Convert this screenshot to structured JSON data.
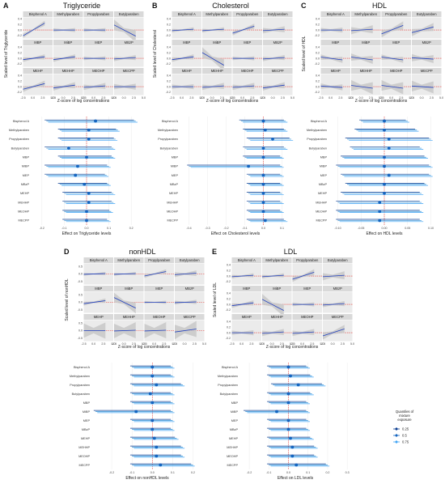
{
  "figure": {
    "legend": {
      "title_lines": [
        "Quantiles of",
        "mixture",
        "exposure"
      ],
      "items": [
        {
          "label": "0.25",
          "color": "#0b3d91"
        },
        {
          "label": "0.5",
          "color": "#1565c0"
        },
        {
          "label": "0.75",
          "color": "#42a5f5"
        }
      ]
    },
    "colors": {
      "fit_line": "#1f3fbf",
      "ref_line": "#e53935",
      "band": "#c8c8c8",
      "strip": "#d9d9d9",
      "panel_bg": "#ebebeb",
      "forest_line": "#2b8fd6",
      "forest_point": "#1565c0"
    }
  },
  "chart_data": [
    {
      "id": "A",
      "outcome": "Triglyceride",
      "type": "line",
      "ylabel": "Scaled level of Triglyceride",
      "xlabel": "Z-score of log concentrations",
      "yticks": [
        "0.4",
        "0.2",
        "0.0",
        "-0.2"
      ],
      "xticks": [
        "-2.5",
        "0.0",
        "2.5",
        "5.0"
      ],
      "ylim": [
        -0.3,
        0.45
      ],
      "xlim": [
        -2.5,
        5.0
      ],
      "facets": [
        {
          "name": "Bisphenol A",
          "slope": 0.45,
          "band": 0.05
        },
        {
          "name": "Methylparaben",
          "slope": 0.0,
          "band": 0.04
        },
        {
          "name": "Propylparaben",
          "slope": 0.0,
          "band": 0.04
        },
        {
          "name": "Butylparaben",
          "slope": -0.4,
          "band": 0.12
        },
        {
          "name": "MBP",
          "slope": 0.1,
          "band": 0.05
        },
        {
          "name": "MiBP",
          "slope": 0.1,
          "band": 0.05
        },
        {
          "name": "MEP",
          "slope": 0.0,
          "band": 0.04
        },
        {
          "name": "MBzP",
          "slope": 0.05,
          "band": 0.05
        },
        {
          "name": "MEHP",
          "slope": 0.2,
          "band": 0.06
        },
        {
          "name": "MEHHP",
          "slope": 0.1,
          "band": 0.06
        },
        {
          "name": "MEOHP",
          "slope": 0.05,
          "band": 0.06
        },
        {
          "name": "MECPP",
          "slope": 0.0,
          "band": 0.06
        }
      ],
      "forest": {
        "xlabel": "Effect on Triglyceride levels",
        "xticks": [
          "-0.2",
          "-0.1",
          "0.0",
          "0.1",
          "0.2"
        ],
        "xlim": [
          -0.25,
          0.25
        ],
        "rows": [
          {
            "name": "Bisphenol A",
            "est": 0.04,
            "lo": -0.18,
            "hi": 0.22
          },
          {
            "name": "Methylparaben",
            "est": 0.01,
            "lo": -0.12,
            "hi": 0.14
          },
          {
            "name": "Propylparaben",
            "est": 0.01,
            "lo": -0.12,
            "hi": 0.13
          },
          {
            "name": "Butylparaben",
            "est": -0.08,
            "lo": -0.18,
            "hi": 0.12
          },
          {
            "name": "MBP",
            "est": 0.0,
            "lo": -0.12,
            "hi": 0.12
          },
          {
            "name": "MiBP",
            "est": -0.04,
            "lo": -0.18,
            "hi": 0.1
          },
          {
            "name": "MEP",
            "est": -0.05,
            "lo": -0.18,
            "hi": 0.09
          },
          {
            "name": "MBzP",
            "est": -0.01,
            "lo": -0.12,
            "hi": 0.1
          },
          {
            "name": "MEHP",
            "est": 0.01,
            "lo": -0.1,
            "hi": 0.12
          },
          {
            "name": "MEHHP",
            "est": 0.01,
            "lo": -0.1,
            "hi": 0.12
          },
          {
            "name": "MEOHP",
            "est": 0.0,
            "lo": -0.1,
            "hi": 0.11
          },
          {
            "name": "MECPP",
            "est": 0.0,
            "lo": -0.1,
            "hi": 0.1
          }
        ]
      }
    },
    {
      "id": "B",
      "outcome": "Cholesterol",
      "type": "line",
      "ylabel": "Scaled level of Cholesterol",
      "xlabel": "Z-score of log concentrations",
      "yticks": [
        "0.4",
        "0.2",
        "0.0",
        "-0.2"
      ],
      "xticks": [
        "-2.5",
        "0.0",
        "2.5",
        "5.0"
      ],
      "ylim": [
        -0.3,
        0.45
      ],
      "xlim": [
        -2.5,
        5.0
      ],
      "facets": [
        {
          "name": "Bisphenol A",
          "slope": 0.05,
          "band": 0.04
        },
        {
          "name": "Methylparaben",
          "slope": 0.05,
          "band": 0.04
        },
        {
          "name": "Propylparaben",
          "slope": 0.25,
          "band": 0.05
        },
        {
          "name": "Butylparaben",
          "slope": 0.05,
          "band": 0.06
        },
        {
          "name": "MBP",
          "slope": 0.1,
          "band": 0.05
        },
        {
          "name": "MiBP",
          "slope": -0.45,
          "band": 0.12
        },
        {
          "name": "MEP",
          "slope": 0.0,
          "band": 0.04
        },
        {
          "name": "MBzP",
          "slope": 0.05,
          "band": 0.05
        },
        {
          "name": "MEHP",
          "slope": 0.0,
          "band": 0.05
        },
        {
          "name": "MEHHP",
          "slope": 0.05,
          "band": 0.06
        },
        {
          "name": "MEOHP",
          "slope": 0.05,
          "band": 0.06
        },
        {
          "name": "MECPP",
          "slope": 0.1,
          "band": 0.06
        }
      ],
      "forest": {
        "xlabel": "Effect on Cholesterol levels",
        "xticks": [
          "-0.4",
          "-0.3",
          "-0.2",
          "-0.1",
          "0.0",
          "0.1"
        ],
        "xlim": [
          -0.45,
          0.15
        ],
        "rows": [
          {
            "name": "Bisphenol A",
            "est": 0.0,
            "lo": -0.12,
            "hi": 0.12
          },
          {
            "name": "Methylparaben",
            "est": 0.01,
            "lo": -0.1,
            "hi": 0.12
          },
          {
            "name": "Propylparaben",
            "est": 0.05,
            "lo": -0.08,
            "hi": 0.15
          },
          {
            "name": "Butylparaben",
            "est": 0.0,
            "lo": -0.1,
            "hi": 0.12
          },
          {
            "name": "MBP",
            "est": 0.0,
            "lo": -0.1,
            "hi": 0.1
          },
          {
            "name": "MiBP",
            "est": -0.08,
            "lo": -0.4,
            "hi": 0.1
          },
          {
            "name": "MEP",
            "est": 0.0,
            "lo": -0.08,
            "hi": 0.1
          },
          {
            "name": "MBzP",
            "est": 0.0,
            "lo": -0.08,
            "hi": 0.1
          },
          {
            "name": "MEHP",
            "est": 0.0,
            "lo": -0.08,
            "hi": 0.1
          },
          {
            "name": "MEHHP",
            "est": 0.0,
            "lo": -0.08,
            "hi": 0.1
          },
          {
            "name": "MEOHP",
            "est": 0.0,
            "lo": -0.08,
            "hi": 0.1
          },
          {
            "name": "MECPP",
            "est": 0.01,
            "lo": -0.08,
            "hi": 0.12
          }
        ]
      }
    },
    {
      "id": "C",
      "outcome": "HDL",
      "type": "line",
      "ylabel": "Scaled level of HDL",
      "xlabel": "Z-score of log concentrations",
      "yticks": [
        "0.4",
        "0.2",
        "0.0",
        "-0.2"
      ],
      "xticks": [
        "-2.5",
        "0.0",
        "2.5",
        "5.0"
      ],
      "ylim": [
        -0.3,
        0.45
      ],
      "xlim": [
        -2.5,
        5.0
      ],
      "facets": [
        {
          "name": "Bisphenol A",
          "slope": 0.0,
          "band": 0.05
        },
        {
          "name": "Methylparaben",
          "slope": 0.05,
          "band": 0.08
        },
        {
          "name": "Propylparaben",
          "slope": 0.3,
          "band": 0.08
        },
        {
          "name": "Butylparaben",
          "slope": 0.2,
          "band": 0.08
        },
        {
          "name": "MBP",
          "slope": -0.1,
          "band": 0.06
        },
        {
          "name": "MiBP",
          "slope": -0.1,
          "band": 0.08
        },
        {
          "name": "MEP",
          "slope": -0.1,
          "band": 0.06
        },
        {
          "name": "MBzP",
          "slope": -0.05,
          "band": 0.08
        },
        {
          "name": "MEHP",
          "slope": -0.05,
          "band": 0.06
        },
        {
          "name": "MEHHP",
          "slope": -0.1,
          "band": 0.12
        },
        {
          "name": "MEOHP",
          "slope": -0.1,
          "band": 0.12
        },
        {
          "name": "MECPP",
          "slope": -0.05,
          "band": 0.12
        }
      ],
      "forest": {
        "xlabel": "Effect on HDL levels",
        "xticks": [
          "-0.10",
          "-0.05",
          "0.00",
          "0.05",
          "0.10"
        ],
        "xlim": [
          -0.12,
          0.12
        ],
        "rows": [
          {
            "name": "Bisphenol A",
            "est": 0.0,
            "lo": -0.05,
            "hi": 0.05
          },
          {
            "name": "Methylparaben",
            "est": 0.0,
            "lo": -0.06,
            "hi": 0.07
          },
          {
            "name": "Propylparaben",
            "est": 0.01,
            "lo": -0.08,
            "hi": 0.1
          },
          {
            "name": "Butylparaben",
            "est": 0.01,
            "lo": -0.07,
            "hi": 0.08
          },
          {
            "name": "MBP",
            "est": 0.0,
            "lo": -0.09,
            "hi": 0.09
          },
          {
            "name": "MiBP",
            "est": 0.0,
            "lo": -0.1,
            "hi": 0.1
          },
          {
            "name": "MEP",
            "est": 0.01,
            "lo": -0.09,
            "hi": 0.1
          },
          {
            "name": "MBzP",
            "est": 0.0,
            "lo": -0.08,
            "hi": 0.09
          },
          {
            "name": "MEHP",
            "est": 0.0,
            "lo": -0.09,
            "hi": 0.08
          },
          {
            "name": "MEHHP",
            "est": -0.01,
            "lo": -0.1,
            "hi": 0.08
          },
          {
            "name": "MEOHP",
            "est": -0.01,
            "lo": -0.1,
            "hi": 0.08
          },
          {
            "name": "MECPP",
            "est": -0.01,
            "lo": -0.1,
            "hi": 0.08
          }
        ]
      }
    },
    {
      "id": "D",
      "outcome": "nonHDL",
      "type": "line",
      "ylabel": "Scaled level of nonHDL",
      "xlabel": "Z-score of log concentrations",
      "yticks": [
        "0.5",
        "0.0",
        "-0.5"
      ],
      "xticks": [
        "-2.5",
        "0.0",
        "2.5",
        "5.0"
      ],
      "ylim": [
        -0.7,
        0.7
      ],
      "xlim": [
        -2.5,
        5.0
      ],
      "facets": [
        {
          "name": "Bisphenol A",
          "slope": 0.05,
          "band": 0.06
        },
        {
          "name": "Methylparaben",
          "slope": 0.05,
          "band": 0.06
        },
        {
          "name": "Propylparaben",
          "slope": 0.3,
          "band": 0.08
        },
        {
          "name": "Butylparaben",
          "slope": 0.1,
          "band": 0.1
        },
        {
          "name": "MBP",
          "slope": 0.2,
          "band": 0.08
        },
        {
          "name": "MiBP",
          "slope": -0.7,
          "band": 0.2
        },
        {
          "name": "MEP",
          "slope": 0.0,
          "band": 0.06
        },
        {
          "name": "MBzP",
          "slope": 0.05,
          "band": 0.08
        },
        {
          "name": "MEHP",
          "slope": 0.0,
          "band": 0.3
        },
        {
          "name": "MEHHP",
          "slope": 0.05,
          "band": 0.3
        },
        {
          "name": "MEOHP",
          "slope": 0.05,
          "band": 0.3
        },
        {
          "name": "MECPP",
          "slope": 0.2,
          "band": 0.3
        }
      ],
      "forest": {
        "xlabel": "Effect on nonHDL levels",
        "xticks": [
          "-0.2",
          "-0.1",
          "0.0",
          "0.1",
          "0.2"
        ],
        "xlim": [
          -0.3,
          0.25
        ],
        "rows": [
          {
            "name": "Bisphenol A",
            "est": 0.0,
            "lo": -0.1,
            "hi": 0.1
          },
          {
            "name": "Methylparaben",
            "est": 0.0,
            "lo": -0.1,
            "hi": 0.1
          },
          {
            "name": "Propylparaben",
            "est": 0.02,
            "lo": -0.1,
            "hi": 0.15
          },
          {
            "name": "Butylparaben",
            "est": -0.01,
            "lo": -0.1,
            "hi": 0.1
          },
          {
            "name": "MBP",
            "est": 0.0,
            "lo": -0.1,
            "hi": 0.1
          },
          {
            "name": "MiBP",
            "est": -0.08,
            "lo": -0.28,
            "hi": 0.1
          },
          {
            "name": "MEP",
            "est": 0.0,
            "lo": -0.1,
            "hi": 0.1
          },
          {
            "name": "MBzP",
            "est": 0.0,
            "lo": -0.1,
            "hi": 0.1
          },
          {
            "name": "MEHP",
            "est": 0.01,
            "lo": -0.1,
            "hi": 0.12
          },
          {
            "name": "MEHHP",
            "est": 0.02,
            "lo": -0.1,
            "hi": 0.15
          },
          {
            "name": "MEOHP",
            "est": 0.02,
            "lo": -0.1,
            "hi": 0.15
          },
          {
            "name": "MECPP",
            "est": 0.04,
            "lo": -0.1,
            "hi": 0.2
          }
        ]
      }
    },
    {
      "id": "E",
      "outcome": "LDL",
      "type": "line",
      "ylabel": "Scaled level of LDL",
      "xlabel": "Z-score of log concentrations",
      "yticks": [
        "0.4",
        "0.2",
        "0.0",
        "-0.2"
      ],
      "xticks": [
        "-2.5",
        "0.0",
        "2.5",
        "5.0"
      ],
      "ylim": [
        -0.3,
        0.45
      ],
      "xlim": [
        -2.5,
        5.0
      ],
      "facets": [
        {
          "name": "Bisphenol A",
          "slope": 0.05,
          "band": 0.04
        },
        {
          "name": "Methylparaben",
          "slope": 0.05,
          "band": 0.04
        },
        {
          "name": "Propylparaben",
          "slope": 0.25,
          "band": 0.06
        },
        {
          "name": "Butylparaben",
          "slope": 0.05,
          "band": 0.08
        },
        {
          "name": "MBP",
          "slope": 0.1,
          "band": 0.05
        },
        {
          "name": "MiBP",
          "slope": -0.4,
          "band": 0.12
        },
        {
          "name": "MEP",
          "slope": 0.0,
          "band": 0.04
        },
        {
          "name": "MBzP",
          "slope": 0.05,
          "band": 0.05
        },
        {
          "name": "MEHP",
          "slope": 0.0,
          "band": 0.05
        },
        {
          "name": "MEHHP",
          "slope": 0.05,
          "band": 0.06
        },
        {
          "name": "MEOHP",
          "slope": 0.05,
          "band": 0.06
        },
        {
          "name": "MECPP",
          "slope": 0.25,
          "band": 0.08
        }
      ],
      "forest": {
        "xlabel": "Effect on LDL levels",
        "xticks": [
          "-0.2",
          "-0.1",
          "0.0",
          "0.1",
          "0.2",
          "0.3"
        ],
        "xlim": [
          -0.25,
          0.32
        ],
        "rows": [
          {
            "name": "Bisphenol A",
            "est": 0.0,
            "lo": -0.1,
            "hi": 0.1
          },
          {
            "name": "Methylparaben",
            "est": 0.01,
            "lo": -0.1,
            "hi": 0.12
          },
          {
            "name": "Propylparaben",
            "est": 0.05,
            "lo": -0.08,
            "hi": 0.18
          },
          {
            "name": "Butylparaben",
            "est": 0.0,
            "lo": -0.1,
            "hi": 0.12
          },
          {
            "name": "MBP",
            "est": 0.0,
            "lo": -0.1,
            "hi": 0.1
          },
          {
            "name": "MiBP",
            "est": -0.06,
            "lo": -0.22,
            "hi": 0.1
          },
          {
            "name": "MEP",
            "est": 0.0,
            "lo": -0.1,
            "hi": 0.1
          },
          {
            "name": "MBzP",
            "est": 0.0,
            "lo": -0.1,
            "hi": 0.1
          },
          {
            "name": "MEHP",
            "est": 0.01,
            "lo": -0.1,
            "hi": 0.12
          },
          {
            "name": "MEHHP",
            "est": 0.02,
            "lo": -0.1,
            "hi": 0.14
          },
          {
            "name": "MEOHP",
            "est": 0.02,
            "lo": -0.1,
            "hi": 0.14
          },
          {
            "name": "MECPP",
            "est": 0.04,
            "lo": -0.1,
            "hi": 0.2
          }
        ]
      }
    }
  ]
}
